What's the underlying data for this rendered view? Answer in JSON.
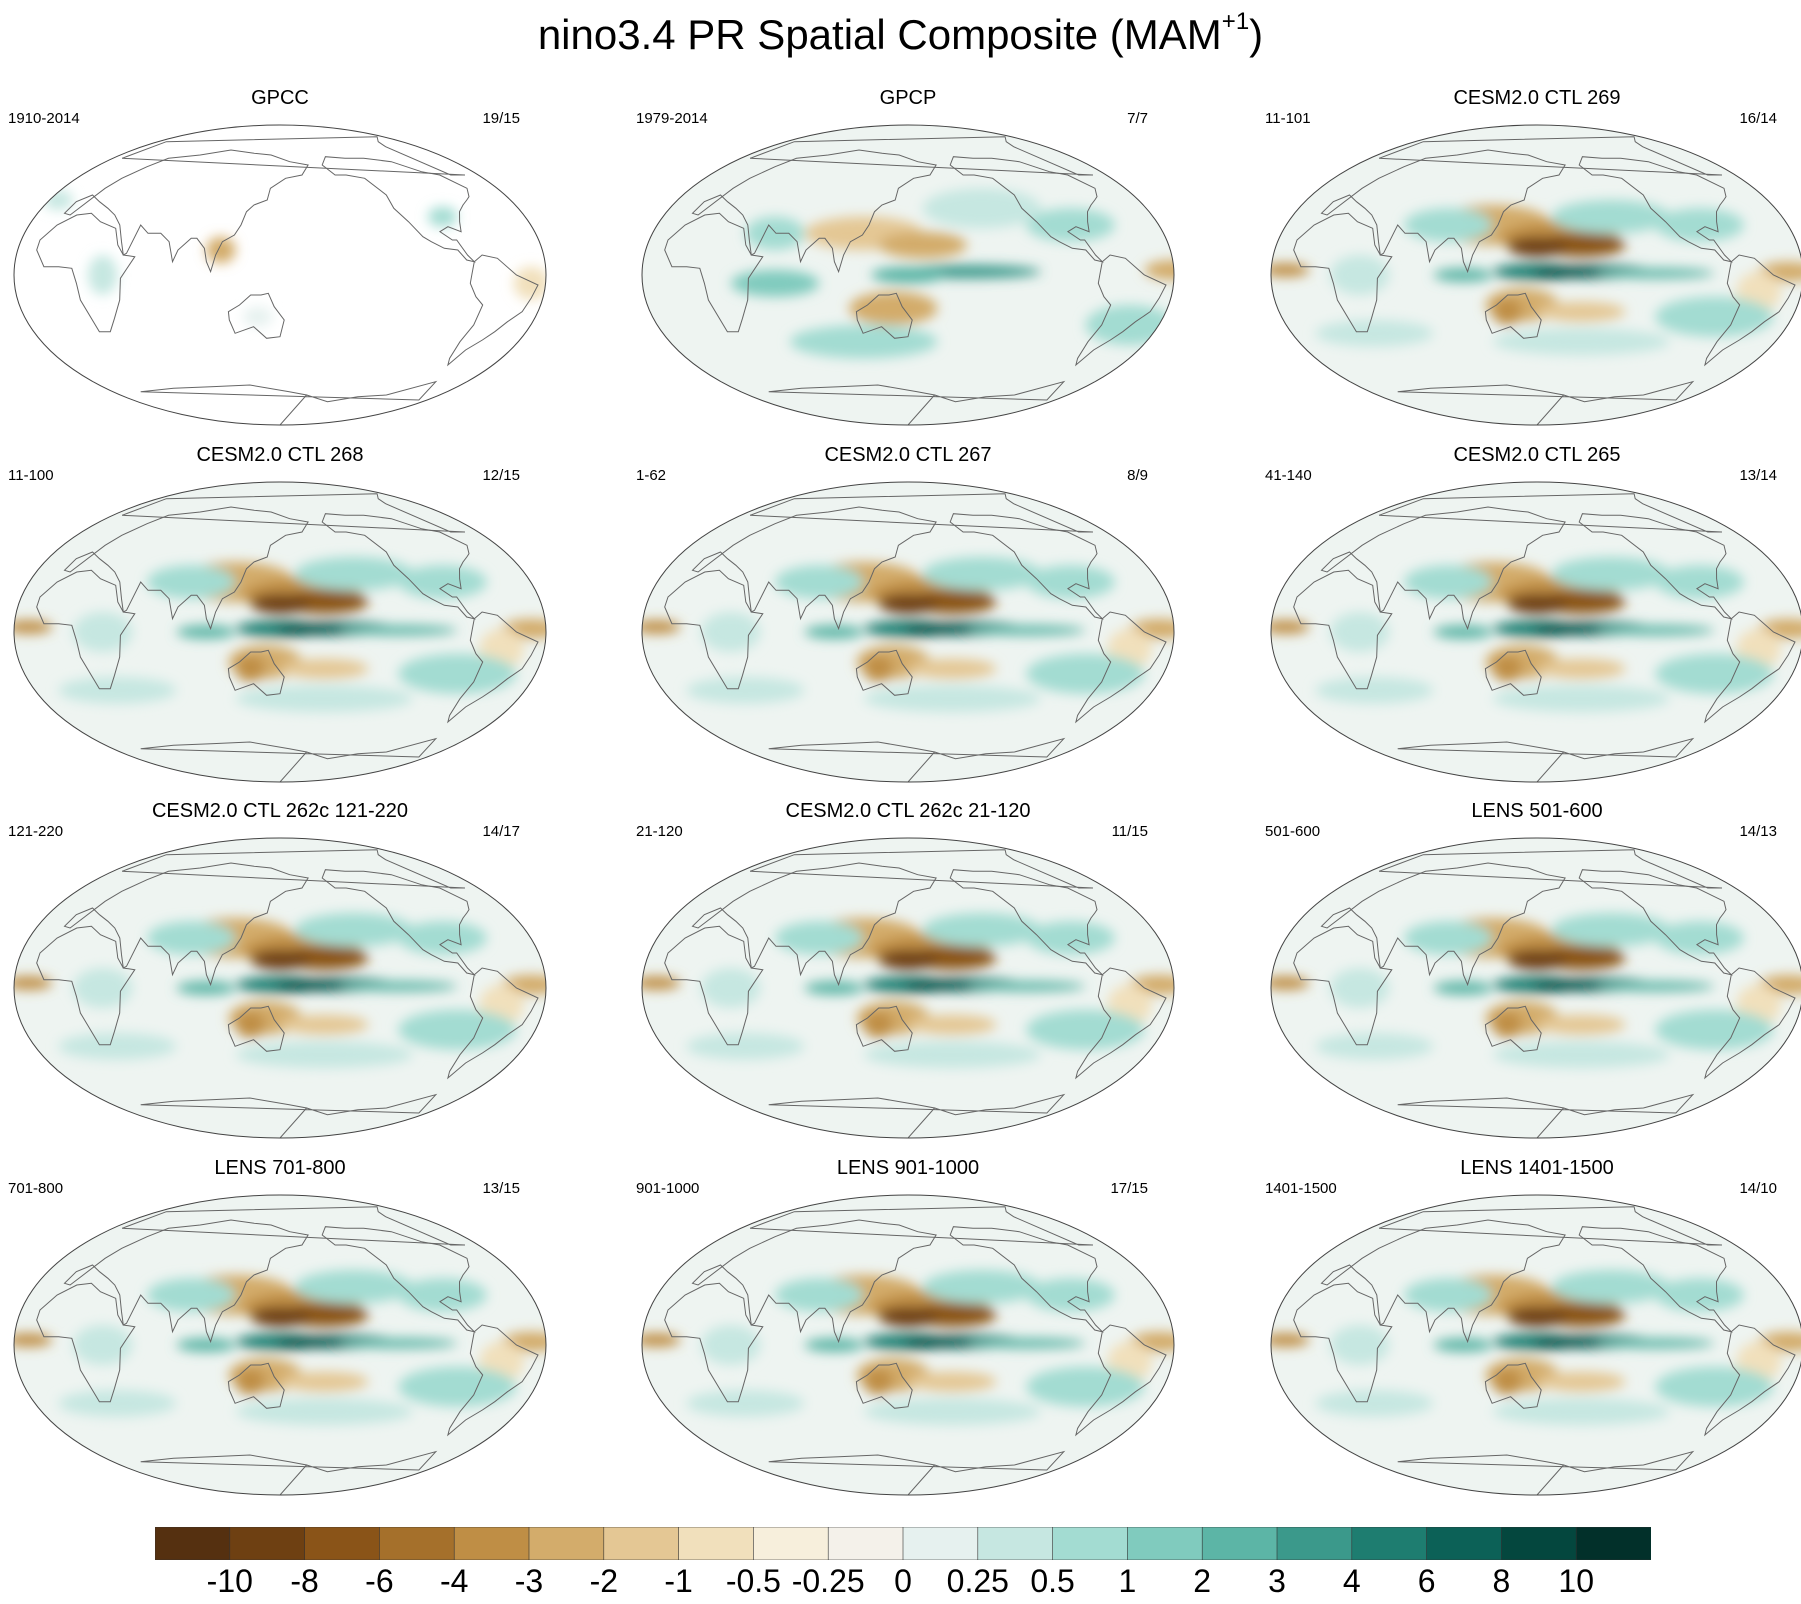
{
  "title": "nino3.4 PR Spatial Composite (MAM",
  "title_sup": "+1",
  "title_end": ")",
  "panels": [
    {
      "title": "GPCC",
      "left_label": "1910-2014",
      "right_label": "19/15"
    },
    {
      "title": "GPCP",
      "left_label": "1979-2014",
      "right_label": "7/7"
    },
    {
      "title": "CESM2.0 CTL 269",
      "left_label": "11-101",
      "right_label": "16/14"
    },
    {
      "title": "CESM2.0 CTL 268",
      "left_label": "11-100",
      "right_label": "12/15"
    },
    {
      "title": "CESM2.0 CTL 267",
      "left_label": "1-62",
      "right_label": "8/9"
    },
    {
      "title": "CESM2.0 CTL 265",
      "left_label": "41-140",
      "right_label": "13/14"
    },
    {
      "title": "CESM2.0 CTL 262c 121-220",
      "left_label": "121-220",
      "right_label": "14/17"
    },
    {
      "title": "CESM2.0 CTL 262c 21-120",
      "left_label": "21-120",
      "right_label": "11/15"
    },
    {
      "title": "LENS 501-600",
      "left_label": "501-600",
      "right_label": "14/13"
    },
    {
      "title": "LENS 701-800",
      "left_label": "701-800",
      "right_label": "13/15"
    },
    {
      "title": "LENS 901-1000",
      "left_label": "901-1000",
      "right_label": "17/15"
    },
    {
      "title": "LENS 1401-1500",
      "left_label": "1401-1500",
      "right_label": "14/10"
    }
  ],
  "colorbar": {
    "labels": [
      "-10",
      "-8",
      "-6",
      "-4",
      "-3",
      "-2",
      "-1",
      "-0.5",
      "-0.25",
      "0",
      "0.25",
      "0.5",
      "1",
      "2",
      "3",
      "4",
      "6",
      "8",
      "10"
    ],
    "colors": [
      "#553010",
      "#6e4012",
      "#8a5418",
      "#a5702b",
      "#bf8e45",
      "#d3ac6b",
      "#e4c794",
      "#f1e0bc",
      "#f7efdc",
      "#f4f1ea",
      "#e6f1ef",
      "#c6e7e1",
      "#a3dcd2",
      "#80cbbe",
      "#5cb5a6",
      "#3b998b",
      "#1e7d70",
      "#0c6157",
      "#04473e",
      "#02302a"
    ]
  }
}
